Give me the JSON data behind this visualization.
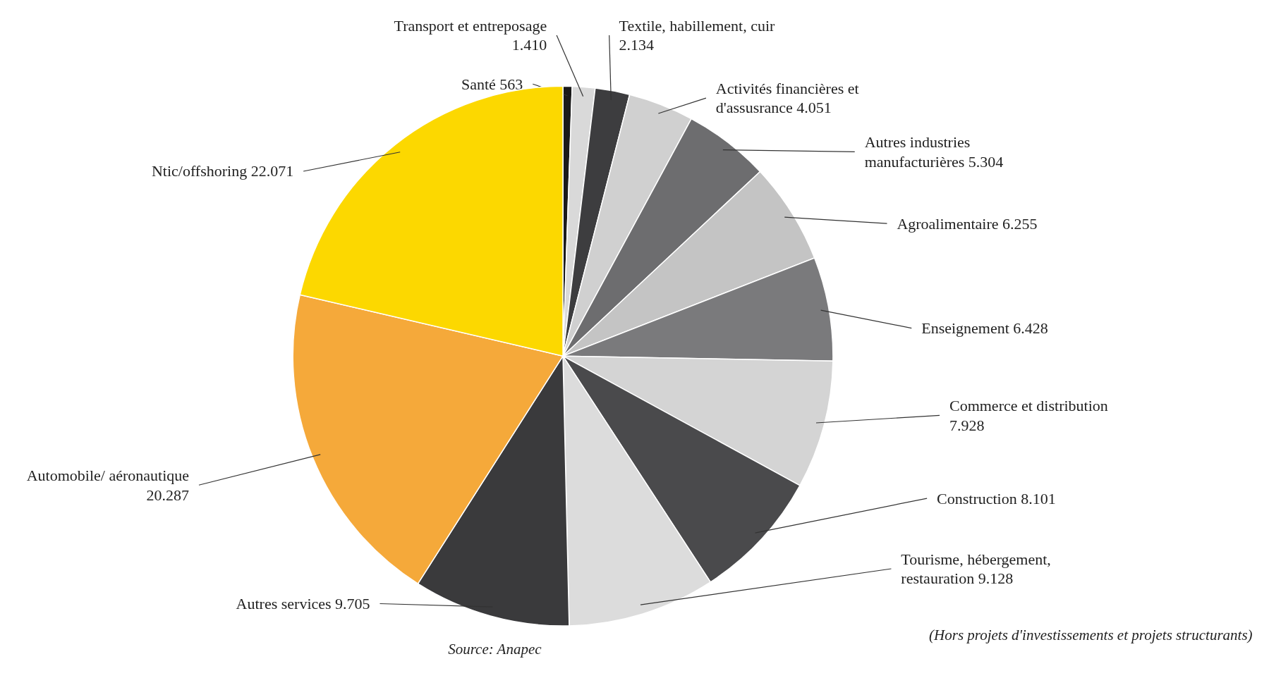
{
  "chart_data": {
    "type": "pie",
    "categories": [
      "Santé",
      "Transport et entreposage",
      "Textile, habillement, cuir",
      "Activités financières et d'assusrance",
      "Autres industries manufacturières",
      "Agroalimentaire",
      "Enseignement",
      "Commerce et distribution",
      "Construction",
      "Tourisme, hébergement, restauration",
      "Autres services",
      "Automobile/ aéronautique",
      "Ntic/offshoring"
    ],
    "values": [
      563,
      1410,
      2134,
      4051,
      5304,
      6255,
      6428,
      7928,
      8101,
      9128,
      9705,
      20287,
      22071
    ],
    "value_labels": [
      "563",
      "1.410",
      "2.134",
      "4.051",
      "5.304",
      "6.255",
      "6.428",
      "7.928",
      "8.101",
      "9.128",
      "9.705",
      "20.287",
      "22.071"
    ],
    "colors": [
      "#1a1a1a",
      "#d9d9d9",
      "#3d3d3f",
      "#d0d0d0",
      "#6d6d6f",
      "#c4c4c4",
      "#7a7a7c",
      "#d4d4d4",
      "#4a4a4c",
      "#dcdcdc",
      "#3a3a3c",
      "#f5a93a",
      "#fcd800"
    ],
    "annotations": [
      "(Hors projets d'investissements et projets structurants)",
      "Source: Anapec"
    ]
  }
}
